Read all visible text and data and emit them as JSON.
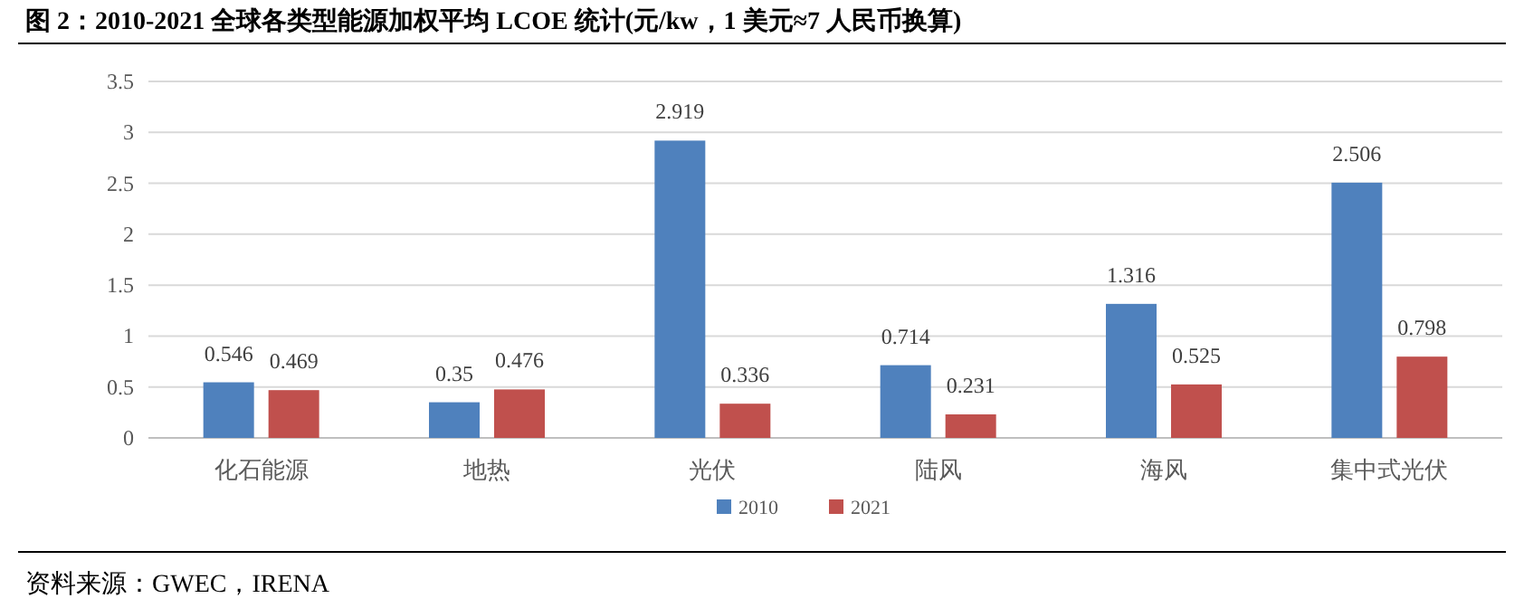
{
  "chart_data": {
    "type": "bar",
    "title": "图 2：2010-2021 全球各类型能源加权平均 LCOE 统计(元/kw，1 美元≈7 人民币换算)",
    "categories": [
      "化石能源",
      "地热",
      "光伏",
      "陆风",
      "海风",
      "集中式光伏"
    ],
    "series": [
      {
        "name": "2010",
        "color": "#4f81bd",
        "values": [
          0.546,
          0.35,
          2.919,
          0.714,
          1.316,
          2.506
        ]
      },
      {
        "name": "2021",
        "color": "#c0504d",
        "values": [
          0.469,
          0.476,
          0.336,
          0.231,
          0.525,
          0.798
        ]
      }
    ],
    "ylim": [
      0,
      3.5
    ],
    "yticks": [
      0,
      0.5,
      1,
      1.5,
      2,
      2.5,
      3,
      3.5
    ],
    "grid": "y",
    "legend": "bottom",
    "data_labels": true,
    "annotations": [
      "资料来源：GWEC，IRENA"
    ]
  }
}
